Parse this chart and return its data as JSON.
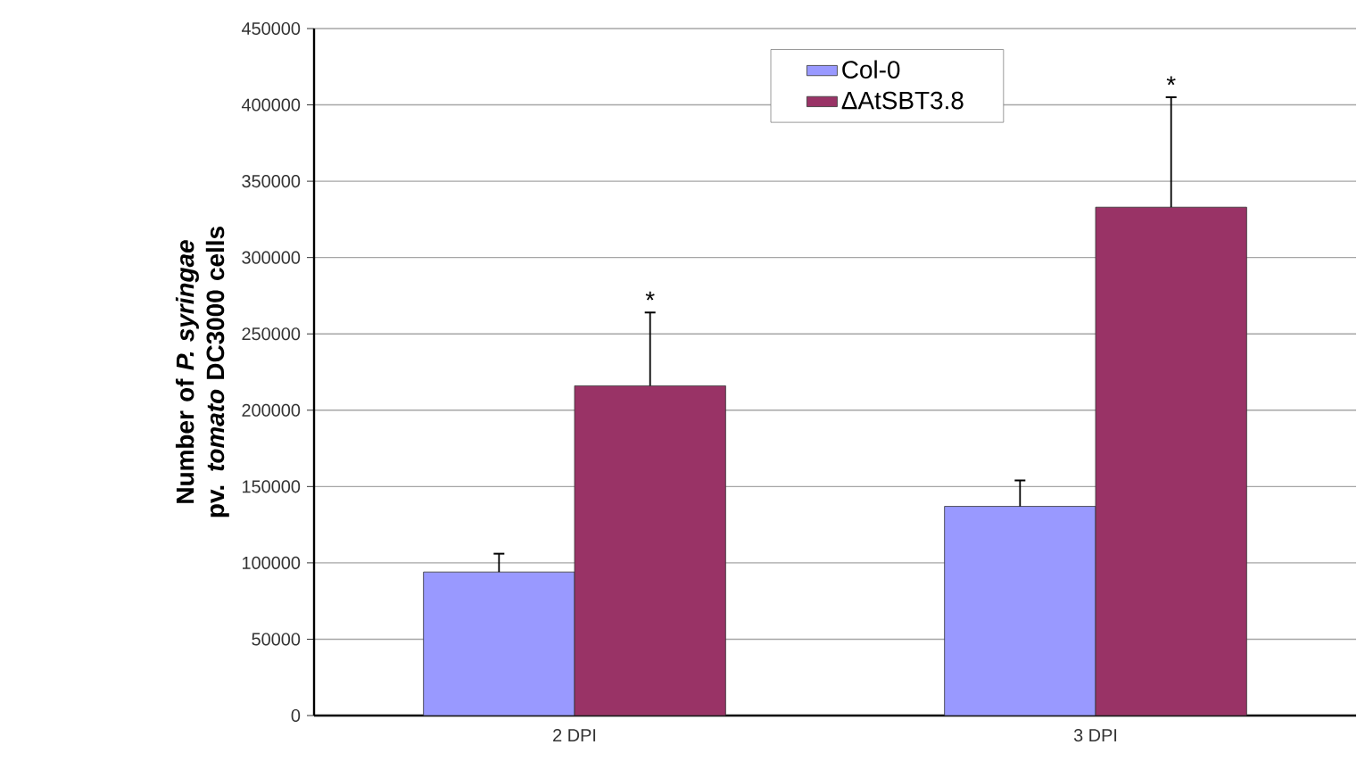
{
  "chart_data": {
    "type": "bar",
    "ylabel": "Number of *P. syringae* pv. *tomato* DC3000 cells",
    "categories": [
      "2 DPI",
      "3 DPI"
    ],
    "series": [
      {
        "name": "Col-0",
        "color": "#9999ff",
        "values": [
          94000,
          137000
        ],
        "errors": [
          [
            94000,
            106000
          ],
          [
            137000,
            154000
          ]
        ]
      },
      {
        "name": "ΔAtSBT3.8",
        "color": "#993366",
        "values": [
          216000,
          333000
        ],
        "errors": [
          [
            216000,
            264000
          ],
          [
            333000,
            405000
          ]
        ]
      }
    ],
    "annotations": [
      {
        "text": "*",
        "y": 264000
      },
      {
        "text": "*",
        "y": 405000
      }
    ],
    "ylim": [
      0,
      450000
    ],
    "yticks": [
      0,
      50000,
      100000,
      150000,
      200000,
      250000,
      300000,
      350000,
      400000,
      450000
    ],
    "grid": "y",
    "legend": "top"
  }
}
